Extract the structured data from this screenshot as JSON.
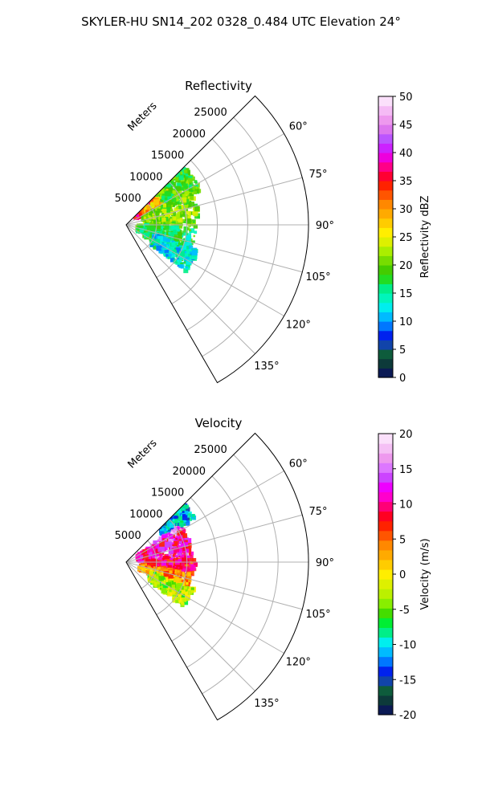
{
  "figure": {
    "title": "SKYLER-HU  SN14_202  0328_0.484 UTC Elevation 24°"
  },
  "chart_data": [
    {
      "type": "heatmap",
      "subtype": "radar-ppi-sector",
      "title": "Reflectivity",
      "range_label": "Meters",
      "range_ticks": [
        "5000",
        "10000",
        "15000",
        "20000",
        "25000"
      ],
      "range_values": [
        5000,
        10000,
        15000,
        20000,
        25000
      ],
      "range_limit": [
        0,
        30000
      ],
      "azimuth_limit": [
        45,
        150
      ],
      "azimuth_ticks": [
        "60°",
        "75°",
        "90°",
        "105°",
        "120°",
        "135°"
      ],
      "azimuth_values": [
        60,
        75,
        90,
        105,
        120,
        135
      ],
      "grid": true,
      "colorbar": {
        "label": "Reflectivity dBZ",
        "ticks": [
          "0",
          "5",
          "10",
          "15",
          "20",
          "25",
          "30",
          "35",
          "40",
          "45",
          "50"
        ],
        "range": [
          0,
          50
        ],
        "colors": [
          "#0b1a55",
          "#0d3a3a",
          "#0e5c3c",
          "#1144aa",
          "#0022ee",
          "#0077ff",
          "#00bbff",
          "#00eeee",
          "#00f5bb",
          "#00ee88",
          "#22dd22",
          "#44cc00",
          "#77dd00",
          "#aaee00",
          "#ddf000",
          "#ffee00",
          "#ffcc00",
          "#ffaa00",
          "#ff8800",
          "#ff5500",
          "#ff2200",
          "#ff0033",
          "#ff0088",
          "#ee00dd",
          "#cc22ff",
          "#bb55ff",
          "#dd77ee",
          "#ee99ee",
          "#f5bbf5",
          "#fbe0fb"
        ]
      },
      "echo_regions": [
        {
          "az": [
            47,
            56
          ],
          "range_m": [
            2000,
            7000
          ],
          "value": 35
        },
        {
          "az": [
            50,
            62
          ],
          "range_m": [
            4000,
            9500
          ],
          "value": 28
        },
        {
          "az": [
            44,
            66
          ],
          "range_m": [
            7000,
            13500
          ],
          "value": 19
        },
        {
          "az": [
            62,
            92
          ],
          "range_m": [
            3000,
            12000
          ],
          "value": 21
        },
        {
          "az": [
            92,
            122
          ],
          "range_m": [
            2000,
            11500
          ],
          "value": 17
        },
        {
          "az": [
            110,
            128
          ],
          "range_m": [
            5000,
            12500
          ],
          "value": 13
        }
      ]
    },
    {
      "type": "heatmap",
      "subtype": "radar-ppi-sector",
      "title": "Velocity",
      "range_label": "Meters",
      "range_ticks": [
        "5000",
        "10000",
        "15000",
        "20000",
        "25000"
      ],
      "range_values": [
        5000,
        10000,
        15000,
        20000,
        25000
      ],
      "range_limit": [
        0,
        30000
      ],
      "azimuth_limit": [
        45,
        150
      ],
      "azimuth_ticks": [
        "60°",
        "75°",
        "90°",
        "105°",
        "120°",
        "135°"
      ],
      "azimuth_values": [
        60,
        75,
        90,
        105,
        120,
        135
      ],
      "grid": true,
      "colorbar": {
        "label": "Velocity (m/s)",
        "ticks": [
          "-20",
          "-15",
          "-10",
          "-5",
          "0",
          "5",
          "10",
          "15",
          "20"
        ],
        "range": [
          -20,
          20
        ],
        "colors": [
          "#0b1a55",
          "#0d3a3a",
          "#0e5c3c",
          "#1144aa",
          "#0022ee",
          "#0077ff",
          "#00bbff",
          "#00eeee",
          "#00ee88",
          "#00ee33",
          "#44dd00",
          "#88ee00",
          "#bbf000",
          "#ddf000",
          "#ffee00",
          "#ffcc00",
          "#ffaa00",
          "#ff8800",
          "#ff5500",
          "#ff2200",
          "#ff0022",
          "#ff0077",
          "#ff00cc",
          "#ee00ff",
          "#cc44ff",
          "#dd77ff",
          "#ee99ee",
          "#f5c0f5",
          "#fbe0fb"
        ]
      },
      "echo_regions": [
        {
          "az": [
            43,
            58
          ],
          "range_m": [
            7500,
            13500
          ],
          "value": -11
        },
        {
          "az": [
            56,
            70
          ],
          "range_m": [
            5000,
            10500
          ],
          "value": 15
        },
        {
          "az": [
            60,
            88
          ],
          "range_m": [
            2000,
            11000
          ],
          "value": 11
        },
        {
          "az": [
            88,
            102
          ],
          "range_m": [
            3000,
            11500
          ],
          "value": 8
        },
        {
          "az": [
            100,
            118
          ],
          "range_m": [
            2500,
            11000
          ],
          "value": 4
        },
        {
          "az": [
            112,
            128
          ],
          "range_m": [
            4500,
            12000
          ],
          "value": -3
        }
      ]
    }
  ]
}
